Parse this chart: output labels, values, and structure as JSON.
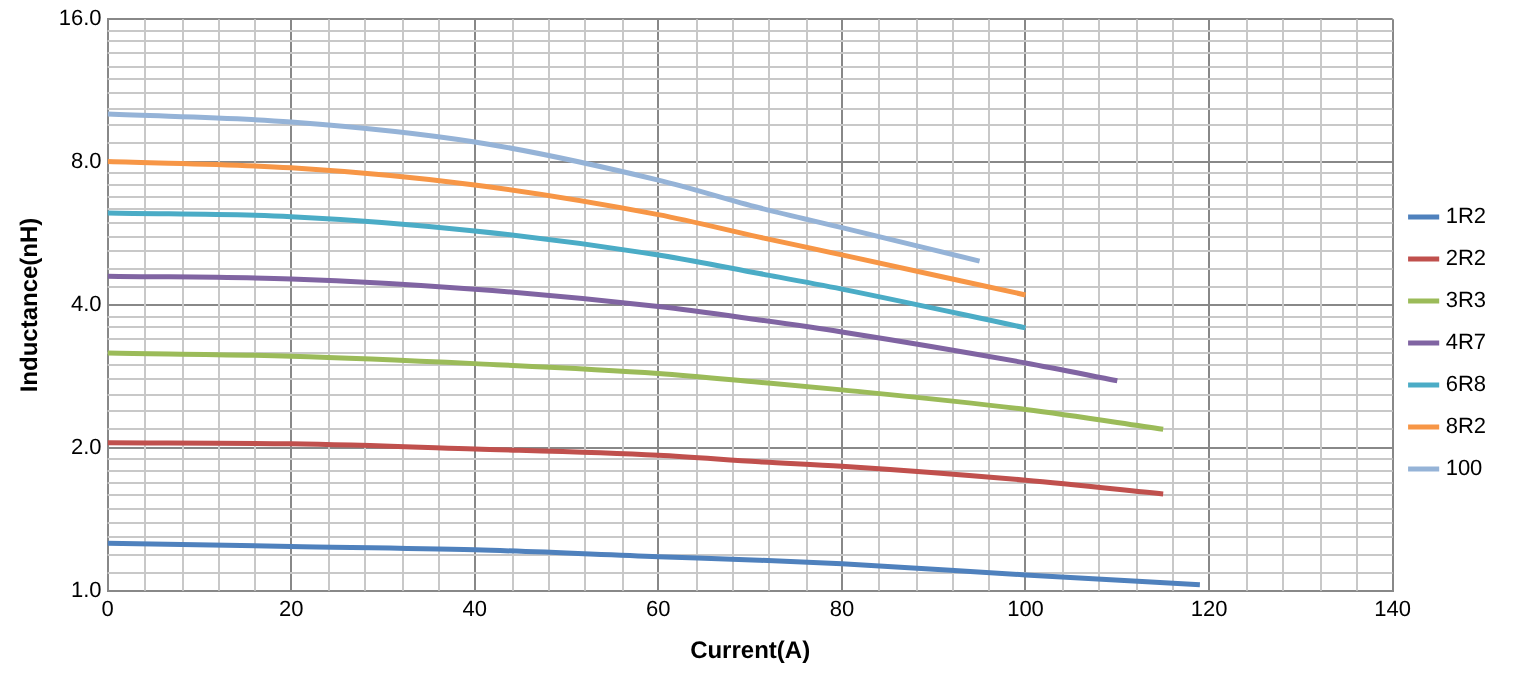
{
  "chart_data": {
    "type": "line",
    "xlabel": "Current(A)",
    "ylabel": "Inductance(nH)",
    "log": "y",
    "grid": true,
    "legend": "right",
    "marker": "none",
    "line_style": "solid",
    "xlim": [
      0,
      140
    ],
    "xticks": [
      0,
      20,
      40,
      60,
      80,
      100,
      120,
      140
    ],
    "ylim": [
      1,
      16
    ],
    "yticks": [
      {
        "value": 1,
        "label": "1.0"
      },
      {
        "value": 2,
        "label": "2.0"
      },
      {
        "value": 4,
        "label": "4.0"
      },
      {
        "value": 8,
        "label": "8.0"
      },
      {
        "value": 16,
        "label": "16.0"
      }
    ],
    "series": [
      {
        "name": "1R2",
        "color": "#4f81bd",
        "x": [
          0,
          20,
          40,
          60,
          71,
          80,
          100,
          119
        ],
        "values": [
          1.26,
          1.24,
          1.22,
          1.18,
          1.16,
          1.14,
          1.08,
          1.03
        ]
      },
      {
        "name": "2R2",
        "color": "#c0504d",
        "x": [
          0,
          20,
          40,
          60,
          71,
          80,
          100,
          115
        ],
        "values": [
          2.05,
          2.04,
          1.99,
          1.93,
          1.87,
          1.83,
          1.71,
          1.6
        ]
      },
      {
        "name": "3R3",
        "color": "#9bbb59",
        "x": [
          0,
          20,
          40,
          60,
          71,
          80,
          100,
          115
        ],
        "values": [
          3.17,
          3.12,
          3.01,
          2.87,
          2.75,
          2.65,
          2.41,
          2.19
        ]
      },
      {
        "name": "4R7",
        "color": "#8064a2",
        "x": [
          0,
          20,
          40,
          60,
          71,
          80,
          100,
          110
        ],
        "values": [
          4.6,
          4.54,
          4.32,
          3.97,
          3.72,
          3.51,
          3.02,
          2.77
        ]
      },
      {
        "name": "6R8",
        "color": "#4bacc6",
        "x": [
          0,
          20,
          40,
          60,
          71,
          80,
          100
        ],
        "values": [
          6.25,
          6.14,
          5.73,
          5.1,
          4.66,
          4.32,
          3.58
        ]
      },
      {
        "name": "8R2",
        "color": "#f79646",
        "x": [
          0,
          20,
          40,
          60,
          71,
          80,
          100
        ],
        "values": [
          8.02,
          7.78,
          7.16,
          6.2,
          5.56,
          5.1,
          4.2
        ]
      },
      {
        "name": "100",
        "color": "#95b3d7",
        "x": [
          0,
          20,
          40,
          60,
          71,
          80,
          95
        ],
        "values": [
          10.1,
          9.72,
          8.82,
          7.33,
          6.41,
          5.82,
          4.95
        ]
      }
    ]
  }
}
